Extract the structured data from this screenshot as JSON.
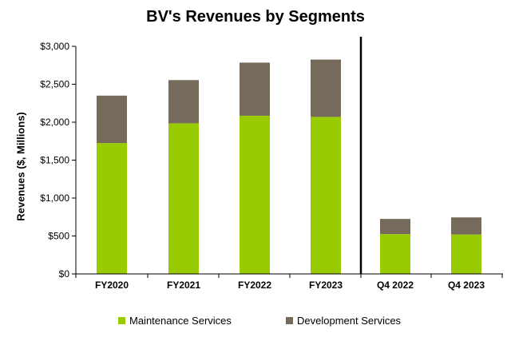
{
  "chart_data": {
    "type": "bar",
    "stacked": true,
    "title": "BV's Revenues by Segments",
    "xlabel": "",
    "ylabel": "Revenues ($, Millions)",
    "ylim": [
      0,
      3000
    ],
    "yticks": [
      0,
      500,
      1000,
      1500,
      2000,
      2500,
      3000
    ],
    "ytick_labels": [
      "$0",
      "$500",
      "$1,000",
      "$1,500",
      "$2,000",
      "$2,500",
      "$3,000"
    ],
    "categories": [
      "FY2020",
      "FY2021",
      "FY2022",
      "FY2023",
      "Q4 2022",
      "Q4 2023"
    ],
    "series": [
      {
        "name": "Maintenance Services",
        "color": "#99cc00",
        "values": [
          1725,
          1985,
          2085,
          2070,
          525,
          520
        ]
      },
      {
        "name": "Development Services",
        "color": "#766a5a",
        "values": [
          625,
          570,
          700,
          755,
          200,
          225
        ]
      }
    ],
    "divider_after_category": "FY2023",
    "legend_position": "bottom",
    "grid": false
  }
}
